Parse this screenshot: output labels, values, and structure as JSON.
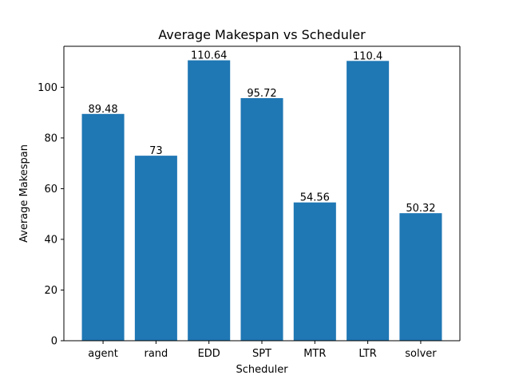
{
  "chart_data": {
    "type": "bar",
    "title": "Average Makespan vs Scheduler",
    "xlabel": "Scheduler",
    "ylabel": "Average Makespan",
    "categories": [
      "agent",
      "rand",
      "EDD",
      "SPT",
      "MTR",
      "LTR",
      "solver"
    ],
    "values": [
      89.48,
      73,
      110.64,
      95.72,
      54.56,
      110.4,
      50.32
    ],
    "value_labels": [
      "89.48",
      "73",
      "110.64",
      "95.72",
      "54.56",
      "110.4",
      "50.32"
    ],
    "ylim": [
      0,
      116.17
    ],
    "yticks": [
      0,
      20,
      40,
      60,
      80,
      100
    ],
    "ytick_labels": [
      "0",
      "20",
      "40",
      "60",
      "80",
      "100"
    ],
    "grid": false,
    "legend": "none",
    "bar_color": "#1f77b4"
  }
}
